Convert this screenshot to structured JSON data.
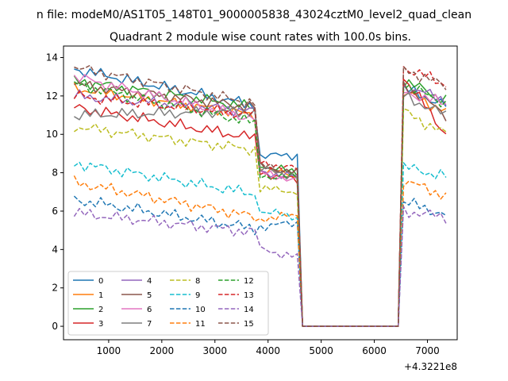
{
  "chart_data": {
    "type": "line",
    "supertitle": "n file: modeM0/AS1T05_148T01_9000005838_43024cztM0_level2_quad_clean",
    "title": "Quadrant 2 module wise count rates with 100.0s bins.",
    "xlabel": "",
    "ylabel": "",
    "x_offset_label": "+4.3221e8",
    "xlim": [
      150,
      7560
    ],
    "ylim": [
      -0.7,
      14.6
    ],
    "xticks": [
      1000,
      2000,
      3000,
      4000,
      5000,
      6000,
      7000
    ],
    "xtick_labels": [
      "1000",
      "2000",
      "3000",
      "4000",
      "5000",
      "6000",
      "7000"
    ],
    "yticks": [
      0,
      2,
      4,
      6,
      8,
      10,
      12,
      14
    ],
    "ytick_labels": [
      "0",
      "2",
      "4",
      "6",
      "8",
      "10",
      "12",
      "14"
    ],
    "grid": false,
    "legend": {
      "location": "lower-left",
      "columns": 4
    },
    "segments": {
      "seg1_x_start": 350,
      "seg1_x_end": 3750,
      "seg2_x_start": 3850,
      "seg2_x_end": 4550,
      "zero_x_start": 4650,
      "zero_x_end": 6450,
      "seg3_x_start": 6550,
      "seg3_x_end": 7350,
      "step": 100
    },
    "series": [
      {
        "name": "0",
        "color": "#1f77b4",
        "dash": "solid",
        "seg1": [
          13.4,
          11.5
        ],
        "seg2": [
          8.9,
          8.9
        ],
        "seg3": [
          12.4,
          11.5
        ]
      },
      {
        "name": "1",
        "color": "#ff7f0e",
        "dash": "solid",
        "seg1": [
          12.4,
          11.0
        ],
        "seg2": [
          8.2,
          7.8
        ],
        "seg3": [
          12.2,
          11.2
        ]
      },
      {
        "name": "2",
        "color": "#2ca02c",
        "dash": "solid",
        "seg1": [
          12.8,
          11.4
        ],
        "seg2": [
          8.4,
          8.0
        ],
        "seg3": [
          12.8,
          11.8
        ]
      },
      {
        "name": "3",
        "color": "#d62728",
        "dash": "solid",
        "seg1": [
          11.4,
          9.8
        ],
        "seg2": [
          8.0,
          7.6
        ],
        "seg3": [
          13.0,
          10.0
        ]
      },
      {
        "name": "4",
        "color": "#9467bd",
        "dash": "solid",
        "seg1": [
          12.0,
          11.2
        ],
        "seg2": [
          8.0,
          7.8
        ],
        "seg3": [
          12.5,
          11.8
        ]
      },
      {
        "name": "5",
        "color": "#8c564b",
        "dash": "solid",
        "seg1": [
          12.6,
          11.4
        ],
        "seg2": [
          8.3,
          8.0
        ],
        "seg3": [
          12.6,
          11.0
        ]
      },
      {
        "name": "6",
        "color": "#e377c2",
        "dash": "solid",
        "seg1": [
          13.0,
          10.8
        ],
        "seg2": [
          8.0,
          7.6
        ],
        "seg3": [
          12.2,
          11.6
        ]
      },
      {
        "name": "7",
        "color": "#7f7f7f",
        "dash": "solid",
        "seg1": [
          11.0,
          11.2
        ],
        "seg2": [
          8.2,
          7.8
        ],
        "seg3": [
          12.0,
          11.0
        ]
      },
      {
        "name": "8",
        "color": "#bcbd22",
        "dash": "dashed",
        "seg1": [
          10.4,
          9.2
        ],
        "seg2": [
          7.2,
          7.0
        ],
        "seg3": [
          11.2,
          10.0
        ]
      },
      {
        "name": "9",
        "color": "#17becf",
        "dash": "dashed",
        "seg1": [
          8.5,
          6.9
        ],
        "seg2": [
          6.0,
          5.7
        ],
        "seg3": [
          8.3,
          7.8
        ]
      },
      {
        "name": "10",
        "color": "#1f77b4",
        "dash": "dashed",
        "seg1": [
          6.6,
          5.1
        ],
        "seg2": [
          5.2,
          5.4
        ],
        "seg3": [
          6.5,
          5.8
        ]
      },
      {
        "name": "11",
        "color": "#ff7f0e",
        "dash": "dashed",
        "seg1": [
          7.5,
          5.7
        ],
        "seg2": [
          5.6,
          5.8
        ],
        "seg3": [
          7.6,
          6.8
        ]
      },
      {
        "name": "12",
        "color": "#2ca02c",
        "dash": "dashed",
        "seg1": [
          12.6,
          10.6
        ],
        "seg2": [
          7.8,
          7.8
        ],
        "seg3": [
          12.6,
          11.6
        ]
      },
      {
        "name": "13",
        "color": "#d62728",
        "dash": "dashed",
        "seg1": [
          12.0,
          11.0
        ],
        "seg2": [
          8.5,
          8.2
        ],
        "seg3": [
          13.5,
          12.6
        ]
      },
      {
        "name": "14",
        "color": "#9467bd",
        "dash": "dashed",
        "seg1": [
          5.9,
          4.9
        ],
        "seg2": [
          4.0,
          3.6
        ],
        "seg3": [
          6.0,
          5.7
        ]
      },
      {
        "name": "15",
        "color": "#8c564b",
        "dash": "dashed",
        "seg1": [
          13.5,
          11.6
        ],
        "seg2": [
          8.4,
          8.0
        ],
        "seg3": [
          13.4,
          12.5
        ]
      }
    ]
  }
}
